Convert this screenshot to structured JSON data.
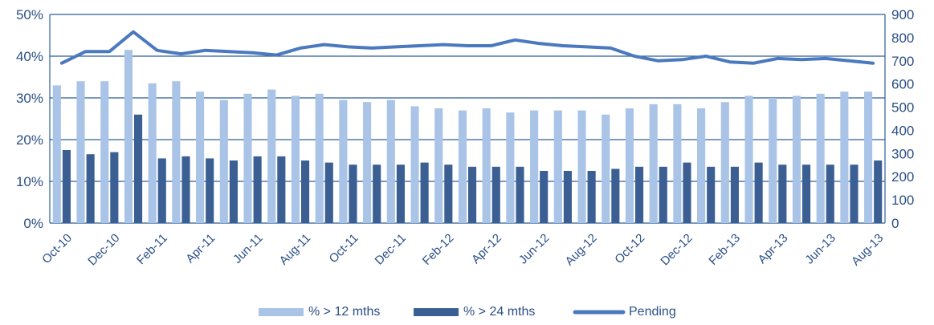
{
  "chart_data": {
    "type": "bar",
    "categories": [
      "Oct-10",
      "Nov-10",
      "Dec-10",
      "Jan-11",
      "Feb-11",
      "Mar-11",
      "Apr-11",
      "May-11",
      "Jun-11",
      "Jul-11",
      "Aug-11",
      "Sep-11",
      "Oct-11",
      "Nov-11",
      "Dec-11",
      "Jan-12",
      "Feb-12",
      "Mar-12",
      "Apr-12",
      "May-12",
      "Jun-12",
      "Jul-12",
      "Aug-12",
      "Sep-12",
      "Oct-12",
      "Nov-12",
      "Dec-12",
      "Jan-13",
      "Feb-13",
      "Mar-13",
      "Apr-13",
      "May-13",
      "Jun-13",
      "Jul-13",
      "Aug-13"
    ],
    "x_tick_labels": [
      "Oct-10",
      "Dec-10",
      "Feb-11",
      "Apr-11",
      "Jun-11",
      "Aug-11",
      "Oct-11",
      "Dec-11",
      "Feb-12",
      "Apr-12",
      "Jun-12",
      "Aug-12",
      "Oct-12",
      "Dec-12",
      "Feb-13",
      "Apr-13",
      "Jun-13",
      "Aug-13"
    ],
    "series": [
      {
        "name": "% > 12 mths",
        "axis": "left",
        "kind": "bar",
        "color": "#a9c4e6",
        "values": [
          33,
          34,
          34,
          41.5,
          33.5,
          34,
          31.5,
          29.5,
          31,
          32,
          30.5,
          31,
          29.5,
          29,
          29.5,
          28,
          27.5,
          27,
          27.5,
          26.5,
          27,
          27,
          27,
          26,
          27.5,
          28.5,
          28.5,
          27.5,
          29,
          30.5,
          30,
          30.5,
          31,
          31.5,
          31.5
        ]
      },
      {
        "name": "% > 24 mths",
        "axis": "left",
        "kind": "bar",
        "color": "#3b5f93",
        "values": [
          17.5,
          16.5,
          17,
          26,
          15.5,
          16,
          15.5,
          15,
          16,
          16,
          15,
          14.5,
          14,
          14,
          14,
          14.5,
          14,
          13.5,
          13.5,
          13.5,
          12.5,
          12.5,
          12.5,
          13,
          13.5,
          13.5,
          14.5,
          13.5,
          13.5,
          14.5,
          14,
          14,
          14,
          14,
          15
        ]
      },
      {
        "name": "Pending",
        "axis": "right",
        "kind": "line",
        "color": "#4a79bf",
        "values": [
          690,
          740,
          740,
          825,
          745,
          730,
          745,
          740,
          735,
          725,
          755,
          770,
          760,
          755,
          760,
          765,
          770,
          765,
          765,
          790,
          775,
          765,
          760,
          755,
          720,
          700,
          705,
          720,
          695,
          690,
          710,
          705,
          710,
          700,
          690
        ]
      }
    ],
    "y_left": {
      "min": 0,
      "max": 50,
      "ticks": [
        "0%",
        "10%",
        "20%",
        "30%",
        "40%",
        "50%"
      ]
    },
    "y_right": {
      "min": 0,
      "max": 900,
      "ticks": [
        "0",
        "100",
        "200",
        "300",
        "400",
        "500",
        "600",
        "700",
        "800",
        "900"
      ]
    },
    "grid": true,
    "legend_position": "bottom"
  }
}
